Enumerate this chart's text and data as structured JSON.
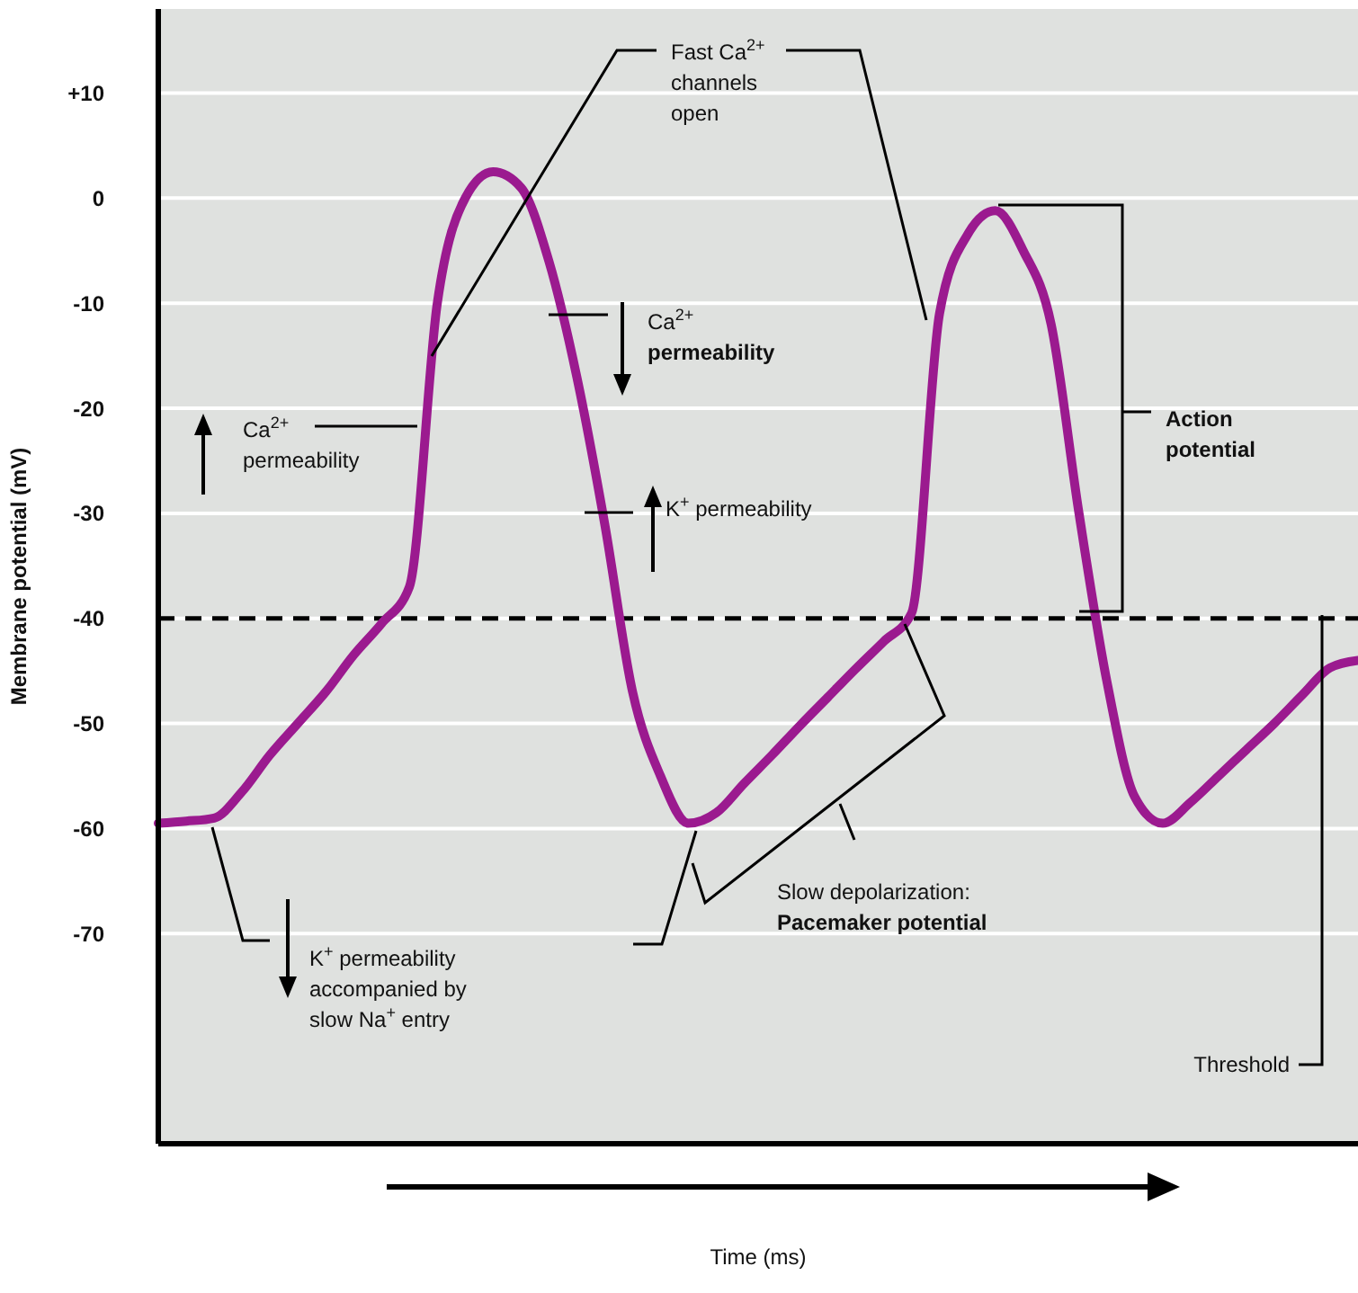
{
  "chart_data": {
    "type": "line",
    "xlabel": "Time (ms)",
    "ylabel": "Membrane potential (mV)",
    "categories": [
      null,
      null,
      null,
      null,
      null,
      null,
      null,
      null,
      null,
      null,
      null,
      null,
      null,
      null,
      null,
      null,
      null,
      null,
      null,
      null,
      null,
      null,
      null,
      null,
      null,
      null,
      null,
      null,
      null,
      null,
      null,
      null,
      null,
      null,
      null,
      null,
      null,
      null,
      null,
      null,
      null,
      null,
      null,
      null
    ],
    "series": [
      {
        "color": "#9b1a8f",
        "values": [
          -59.5,
          -59.3,
          -59,
          -56.5,
          -53,
          -50,
          -47,
          -43.5,
          -40.5,
          -37,
          -10,
          0,
          2.5,
          1,
          -6,
          -17,
          -31,
          -47,
          -55,
          -59.5,
          -58.5,
          -55.7,
          -53,
          -50.2,
          -47.5,
          -44.8,
          -42.2,
          -39.5,
          -11,
          -3.5,
          -1.2,
          -5,
          -12,
          -30,
          -46,
          -57,
          -59.5,
          -57.5,
          -55,
          -52.5,
          -50,
          -47.3,
          -44.7,
          -44
        ]
      }
    ],
    "ylim": [
      -90,
      18
    ],
    "yticks": [
      {
        "value": 10,
        "label": "+10"
      },
      0,
      -10,
      -20,
      -30,
      -40,
      -50,
      -60,
      -70
    ],
    "grid": "y",
    "tick_labels": "y",
    "marker": "none",
    "line_style": "solid",
    "ref_lines": [
      {
        "axis": "y",
        "value": -40,
        "label": "Threshold",
        "line_style": "dashed",
        "color": "#000000"
      }
    ],
    "annotations": [
      "Fast Ca$^{2+}$ channels open",
      "Ca$^{2+}$ permeability",
      "Ca$^{2+}$ permeability",
      "K$^{+}$ permeability",
      "Action potential",
      "K$^{+}$ permeability accompanied by slow Na$^{+}$ entry",
      "Slow depolarization: Pacemaker potential"
    ]
  }
}
